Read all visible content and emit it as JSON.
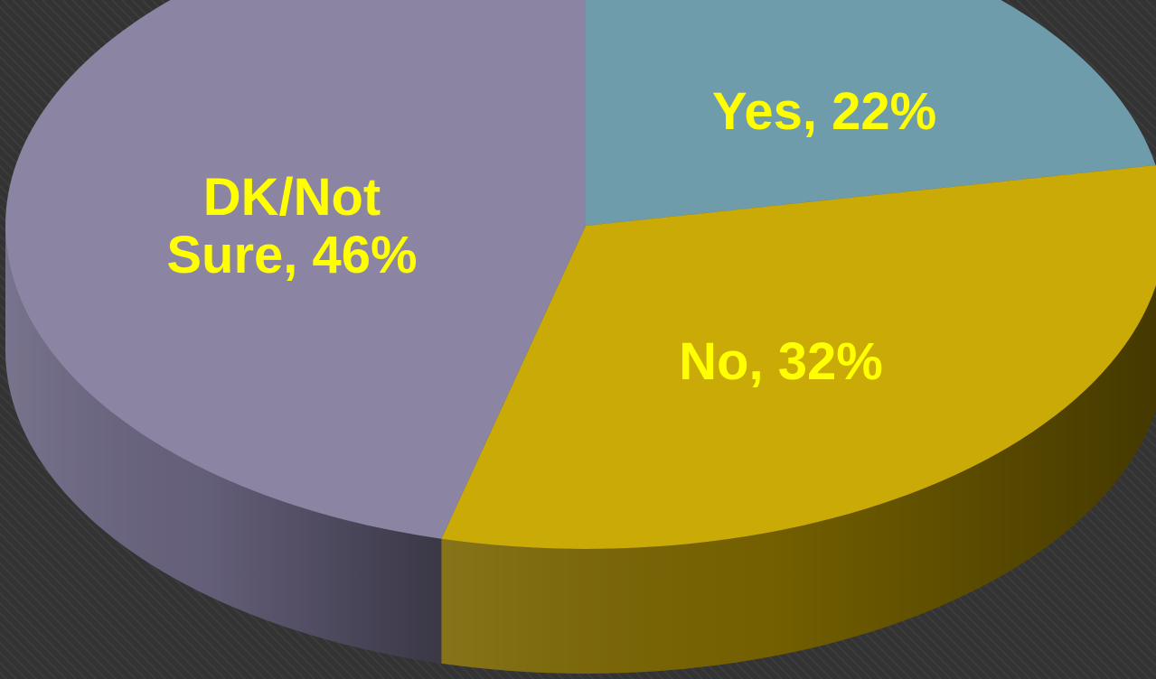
{
  "chart_data": {
    "type": "pie",
    "style": "3d",
    "start_angle_deg": 0,
    "direction": "clockwise",
    "slices": [
      {
        "name": "Yes",
        "value": 22,
        "label": [
          "Yes, 22%"
        ],
        "color": "#6e9cab",
        "side_color": "#4f7684"
      },
      {
        "name": "No",
        "value": 32,
        "label": [
          "No, 32%"
        ],
        "color": "#c9aa06",
        "side_color": "#7a6500"
      },
      {
        "name": "DK/Not Sure",
        "value": 46,
        "label": [
          "DK/Not",
          "Sure, 46%"
        ],
        "color": "#8b84a2",
        "side_color": "#6a6480"
      }
    ],
    "background_color": "#333333",
    "label_color": "#ffff00"
  }
}
